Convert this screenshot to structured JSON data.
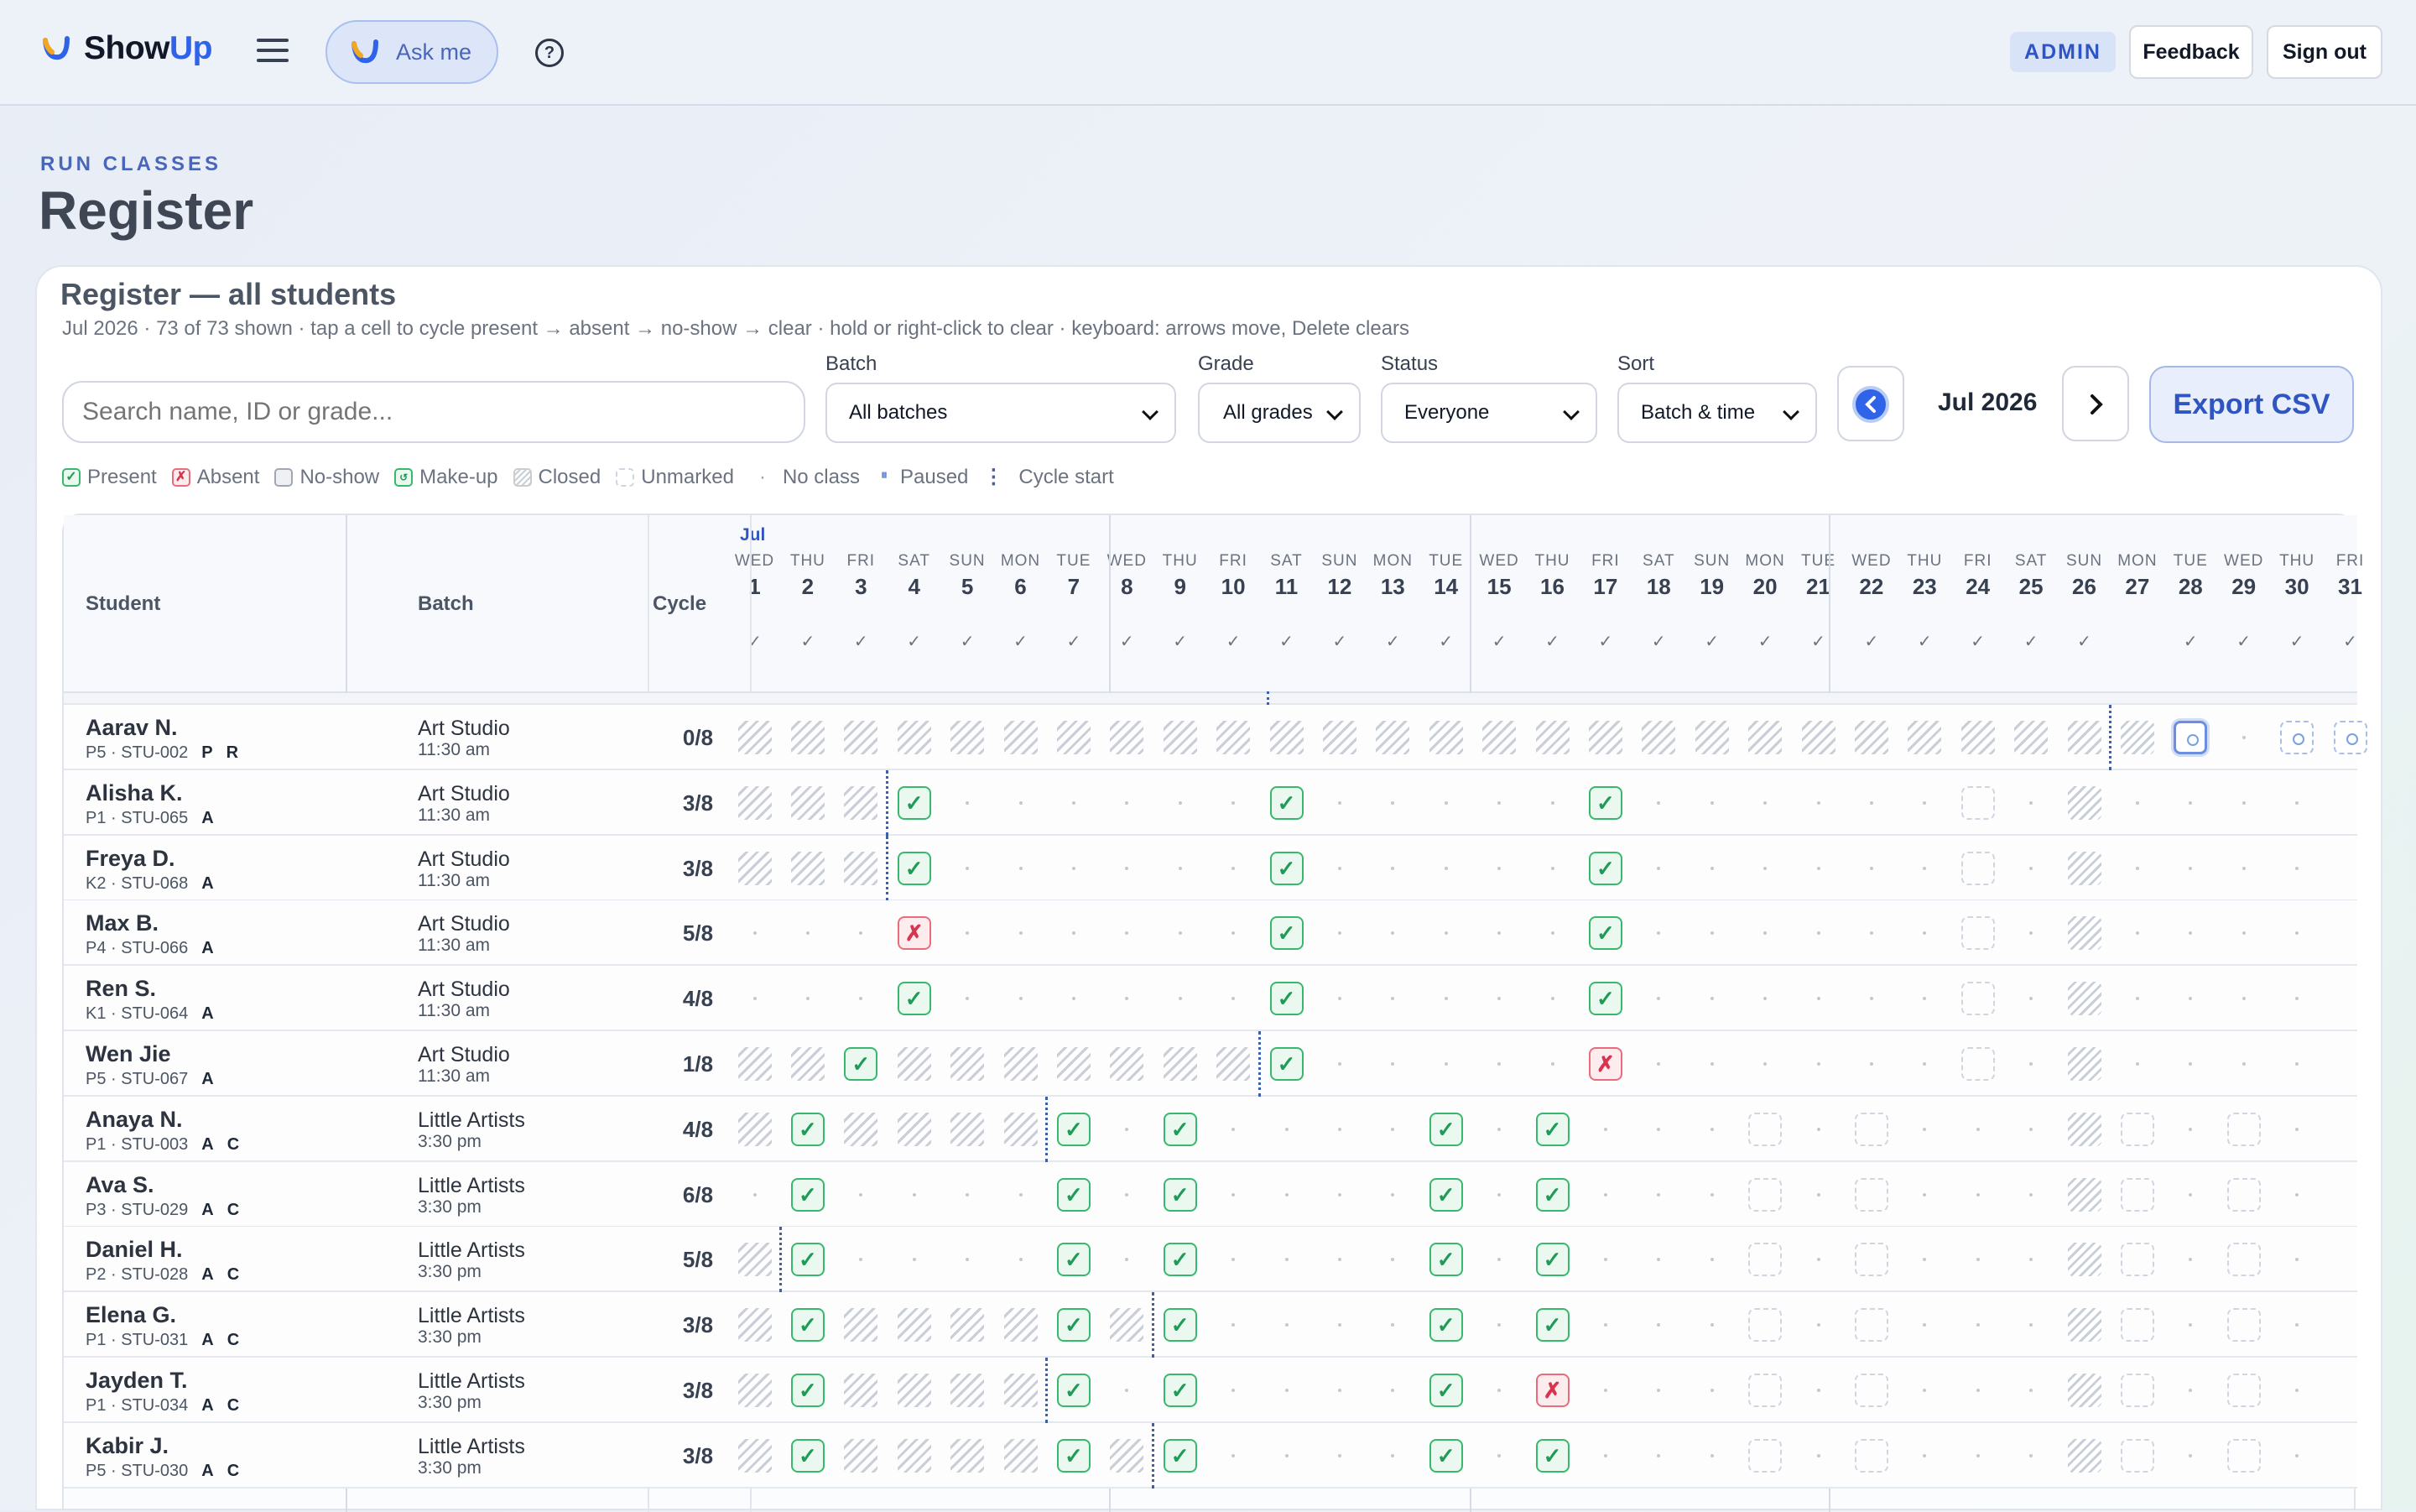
{
  "app": {
    "brand_show": "Show",
    "brand_up": "Up",
    "ask_label": "Ask me",
    "help_glyph": "?",
    "admin_badge": "ADMIN",
    "feedback": "Feedback",
    "signout": "Sign out"
  },
  "page": {
    "breadcrumb": "RUN CLASSES",
    "title": "Register"
  },
  "card": {
    "title": "Register — all students",
    "subtitle": "Jul 2026 · 73 of 73 shown · tap a cell to cycle present → absent → no-show → clear · hold or right-click to clear · keyboard: arrows move, Delete clears"
  },
  "filters": {
    "search_placeholder": "Search name, ID or grade...",
    "batch_label": "Batch",
    "batch_value": "All batches",
    "grade_label": "Grade",
    "grade_value": "All grades",
    "status_label": "Status",
    "status_value": "Everyone",
    "sort_label": "Sort",
    "sort_value": "Batch & time",
    "month": "Jul 2026",
    "export": "Export CSV"
  },
  "legend": {
    "present": "Present",
    "absent": "Absent",
    "noshow": "No-show",
    "makeup": "Make-up",
    "closed": "Closed",
    "unmarked": "Unmarked",
    "noclass": "No class",
    "paused": "Paused",
    "cycle": "Cycle start"
  },
  "grid": {
    "col_student": "Student",
    "col_batch": "Batch",
    "col_cycle": "Cycle",
    "month_short": "Jul",
    "days": [
      [
        "WED",
        "1"
      ],
      [
        "THU",
        "2"
      ],
      [
        "FRI",
        "3"
      ],
      [
        "SAT",
        "4"
      ],
      [
        "SUN",
        "5"
      ],
      [
        "MON",
        "6"
      ],
      [
        "TUE",
        "7"
      ],
      [
        "WED",
        "8"
      ],
      [
        "THU",
        "9"
      ],
      [
        "FRI",
        "10"
      ],
      [
        "SAT",
        "11"
      ],
      [
        "SUN",
        "12"
      ],
      [
        "MON",
        "13"
      ],
      [
        "TUE",
        "14"
      ],
      [
        "WED",
        "15"
      ],
      [
        "THU",
        "16"
      ],
      [
        "FRI",
        "17"
      ],
      [
        "SAT",
        "18"
      ],
      [
        "SUN",
        "19"
      ],
      [
        "MON",
        "20"
      ],
      [
        "TUE",
        "21"
      ],
      [
        "WED",
        "22"
      ],
      [
        "THU",
        "23"
      ],
      [
        "FRI",
        "24"
      ],
      [
        "SAT",
        "25"
      ],
      [
        "SUN",
        "26"
      ],
      [
        "MON",
        "27"
      ],
      [
        "TUE",
        "28"
      ],
      [
        "WED",
        "29"
      ],
      [
        "THU",
        "30"
      ],
      [
        "FRI",
        "31"
      ]
    ],
    "rows": [
      {
        "name": "Aarav N.",
        "meta": "P5 · STU-002",
        "tags": [
          "P",
          "R"
        ],
        "batch": "Art Studio",
        "time": "11:30 am",
        "cycle": "0/8",
        "cells": "HHHHHHHHHHHHHHHHHHHHHHHHHHCSNUU",
        "cstart": 26
      },
      {
        "name": "Alisha K.",
        "meta": "P1 · STU-065",
        "tags": [
          "A"
        ],
        "batch": "Art Studio",
        "time": "11:30 am",
        "cycle": "3/8",
        "cells": "HHHP......P.....P......E.C....",
        "cstart": 3
      },
      {
        "name": "Freya D.",
        "meta": "K2 · STU-068",
        "tags": [
          "A"
        ],
        "batch": "Art Studio",
        "time": "11:30 am",
        "cycle": "3/8",
        "cells": "HHHP......P.....P......E.C....",
        "cstart": 3
      },
      {
        "name": "Max B.",
        "meta": "P4 · STU-066",
        "tags": [
          "A"
        ],
        "batch": "Art Studio",
        "time": "11:30 am",
        "cycle": "5/8",
        "cells": "...X......P.....P......E.C....",
        "cstart": -1
      },
      {
        "name": "Ren S.",
        "meta": "K1 · STU-064",
        "tags": [
          "A"
        ],
        "batch": "Art Studio",
        "time": "11:30 am",
        "cycle": "4/8",
        "cells": "...P......P.....P......E.C....",
        "cstart": -1
      },
      {
        "name": "Wen Jie",
        "meta": "P5 · STU-067",
        "tags": [
          "A"
        ],
        "batch": "Art Studio",
        "time": "11:30 am",
        "cycle": "1/8",
        "cells": "HHPHHHHHHHP.....X......E.C....",
        "cstart": 10
      },
      {
        "name": "Anaya N.",
        "meta": "P1 · STU-003",
        "tags": [
          "A",
          "C"
        ],
        "batch": "Little Artists",
        "time": "3:30 pm",
        "cycle": "4/8",
        "cells": "HPHHHHP.P....P.P...E.E...CE.E.",
        "cstart": 6
      },
      {
        "name": "Ava S.",
        "meta": "P3 · STU-029",
        "tags": [
          "A",
          "C"
        ],
        "batch": "Little Artists",
        "time": "3:30 pm",
        "cycle": "6/8",
        "cells": ".P....P.P....P.P...E.E...CE.E.",
        "cstart": -1
      },
      {
        "name": "Daniel H.",
        "meta": "P2 · STU-028",
        "tags": [
          "A",
          "C"
        ],
        "batch": "Little Artists",
        "time": "3:30 pm",
        "cycle": "5/8",
        "cells": "HP....P.P....P.P...E.E...CE.E.",
        "cstart": 1
      },
      {
        "name": "Elena G.",
        "meta": "P1 · STU-031",
        "tags": [
          "A",
          "C"
        ],
        "batch": "Little Artists",
        "time": "3:30 pm",
        "cycle": "3/8",
        "cells": "HPHHHHPHP....P.P...E.E...CE.E.",
        "cstart": 8
      },
      {
        "name": "Jayden T.",
        "meta": "P1 · STU-034",
        "tags": [
          "A",
          "C"
        ],
        "batch": "Little Artists",
        "time": "3:30 pm",
        "cycle": "3/8",
        "cells": "HPHHHHP.P....P.X...E.E...CE.E.",
        "cstart": 6
      },
      {
        "name": "Kabir J.",
        "meta": "P5 · STU-030",
        "tags": [
          "A",
          "C"
        ],
        "batch": "Little Artists",
        "time": "3:30 pm",
        "cycle": "3/8",
        "cells": "HPHHHHPHP....P.P...E.E...CE.E.",
        "cstart": 8
      }
    ]
  },
  "colors": {
    "accent": "#2f63e8",
    "present": "#37b86c",
    "absent": "#e86c7c"
  }
}
